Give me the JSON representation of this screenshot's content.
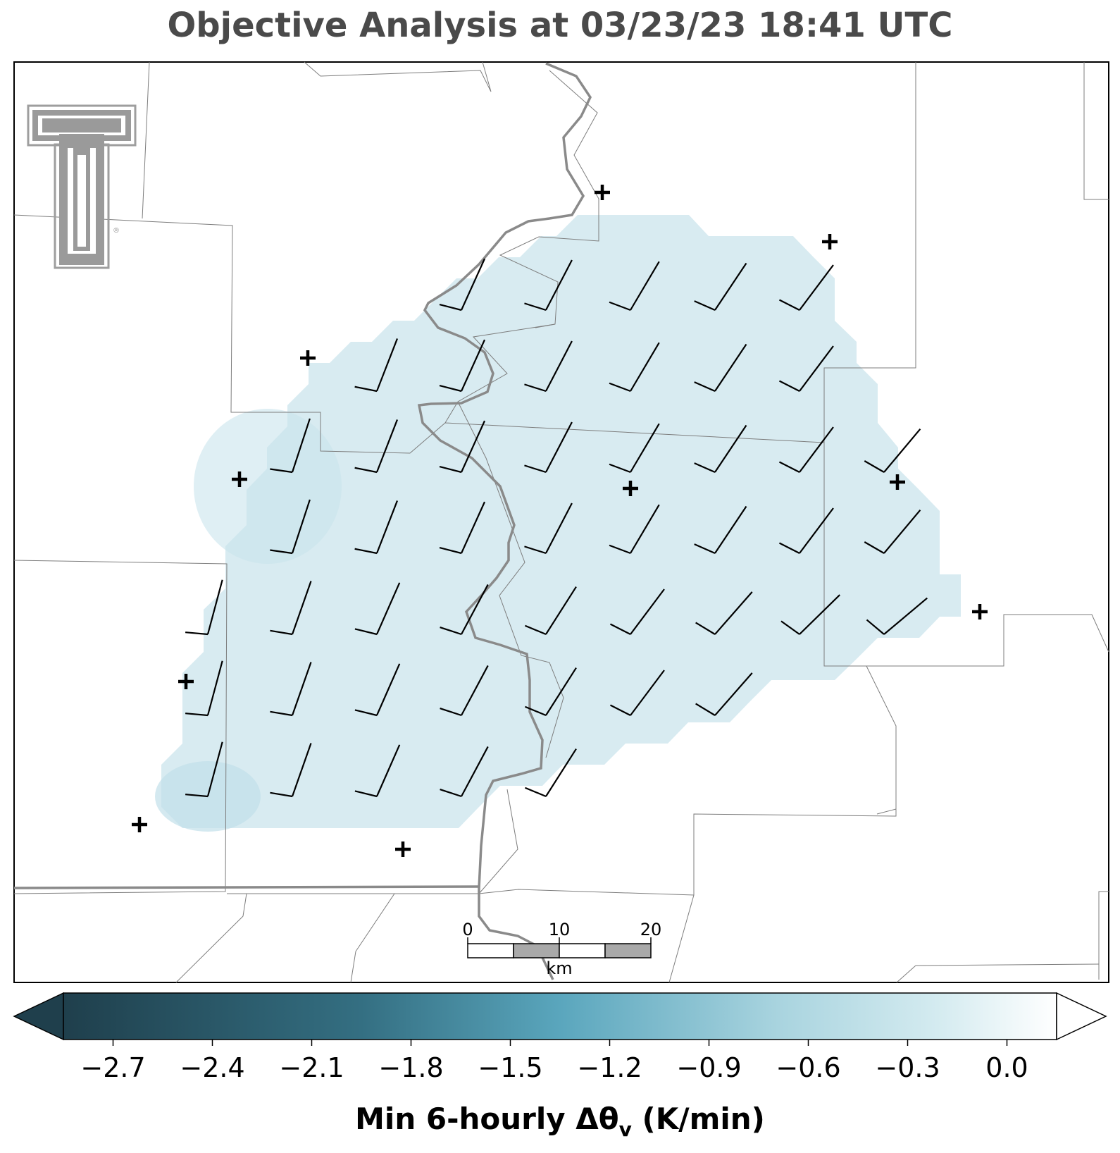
{
  "title": "Objective Analysis at 03/23/23 18:41 UTC",
  "map": {
    "fill_color": "#d7eaf0",
    "fill_color_dark": "#c6e2ea",
    "station_marker": "plus",
    "logo": "texas-tech-double-t-logo",
    "logo_mark": "®",
    "wind_barbs_description": "5-knot half barbs from southwest, uniform grid"
  },
  "scalebar": {
    "ticks": [
      "0",
      "10",
      "20"
    ],
    "unit": "km"
  },
  "colorbar": {
    "label_main": "Min 6-hourly Δθ",
    "label_sub": "v",
    "label_unit": " (K/min)",
    "ticks": [
      "−2.7",
      "−2.4",
      "−2.1",
      "−1.8",
      "−1.5",
      "−1.2",
      "−0.9",
      "−0.6",
      "−0.3",
      "0.0"
    ],
    "min": -2.85,
    "max": 0.15,
    "color_low": "#1f3f4c",
    "color_mid": "#4a98b0",
    "color_light": "#b9dde6",
    "color_high": "#ffffff"
  }
}
